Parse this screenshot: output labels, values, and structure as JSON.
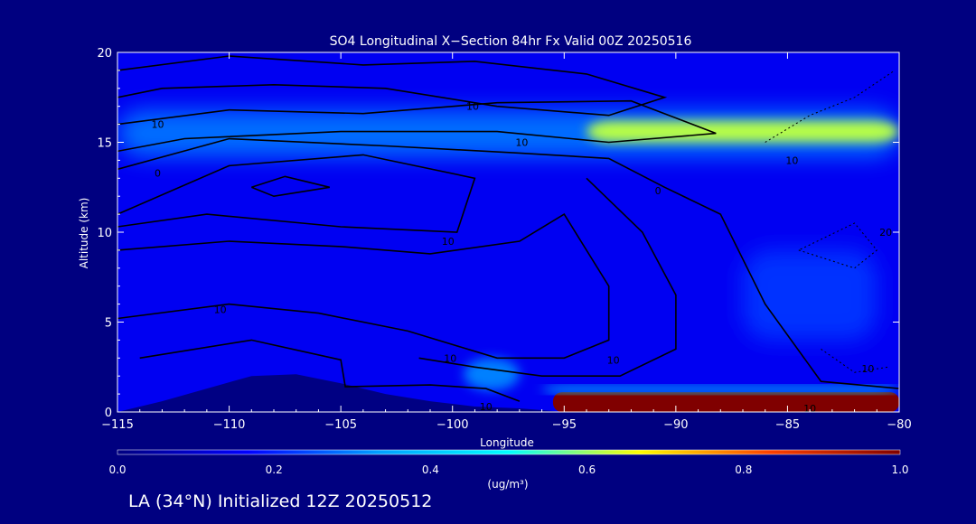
{
  "chart_data": {
    "type": "heatmap",
    "title": "SO4 Longitudinal X−Section 84hr  Fx Valid 00Z 20250516",
    "xlabel": "Longitude",
    "ylabel": "Altitude (km)",
    "xlim": [
      -115,
      -80
    ],
    "ylim": [
      0,
      20
    ],
    "xticks": [
      -115,
      -110,
      -105,
      -100,
      -95,
      -90,
      -85,
      -80
    ],
    "xtick_labels": [
      "−115",
      "−110",
      "−105",
      "−100",
      "−95",
      "−90",
      "−85",
      "−80"
    ],
    "yticks": [
      0,
      5,
      10,
      15,
      20
    ],
    "ytick_labels": [
      "0",
      "5",
      "10",
      "15",
      "20"
    ],
    "colorbar": {
      "label": "(ug/m³)",
      "range": [
        0.0,
        1.0
      ],
      "ticks": [
        0.0,
        0.2,
        0.4,
        0.6,
        0.8,
        1.0
      ],
      "tick_labels": [
        "0.0",
        "0.2",
        "0.4",
        "0.6",
        "0.8",
        "1.0"
      ],
      "colors": [
        "#000080",
        "#0000ff",
        "#00a0ff",
        "#00ffff",
        "#ffff00",
        "#ff4000",
        "#800000"
      ]
    },
    "fields": [
      {
        "name": "background",
        "lon": [
          -115,
          -80
        ],
        "alt": [
          0,
          20
        ],
        "value": 0.15
      },
      {
        "name": "upper-band",
        "lon": [
          -115,
          -80
        ],
        "alt": [
          14.2,
          16.8
        ],
        "value": 0.28
      },
      {
        "name": "tropopause-peak",
        "lon": [
          -94,
          -80
        ],
        "alt": [
          15.0,
          16.2
        ],
        "value": 0.62
      },
      {
        "name": "boundary-layer",
        "lon": [
          -95.5,
          -80
        ],
        "alt": [
          0,
          1.1
        ],
        "value": 1.0
      },
      {
        "name": "surface-edge",
        "lon": [
          -96,
          -80
        ],
        "alt": [
          1.1,
          1.4
        ],
        "value": 0.45
      },
      {
        "name": "low-plume",
        "lon": [
          -99.5,
          -97
        ],
        "alt": [
          1.2,
          3.0
        ],
        "value": 0.3
      },
      {
        "name": "east-mid-layer",
        "lon": [
          -87,
          -81
        ],
        "alt": [
          4,
          9
        ],
        "value": 0.22
      }
    ],
    "contour_labels": [
      {
        "text": "10",
        "lon": -113.2,
        "alt": 16.0
      },
      {
        "text": "10",
        "lon": -99.1,
        "alt": 17.0
      },
      {
        "text": "10",
        "lon": -96.9,
        "alt": 15.0
      },
      {
        "text": "0",
        "lon": -113.2,
        "alt": 13.3
      },
      {
        "text": "0",
        "lon": -90.8,
        "alt": 12.3
      },
      {
        "text": "10",
        "lon": -84.8,
        "alt": 14.0
      },
      {
        "text": "10",
        "lon": -100.2,
        "alt": 9.5
      },
      {
        "text": "20",
        "lon": -80.6,
        "alt": 10.0
      },
      {
        "text": "10",
        "lon": -110.4,
        "alt": 5.7
      },
      {
        "text": "10",
        "lon": -100.1,
        "alt": 3.0
      },
      {
        "text": "10",
        "lon": -92.8,
        "alt": 2.9
      },
      {
        "text": "10",
        "lon": -81.4,
        "alt": 2.4
      },
      {
        "text": "10",
        "lon": -84.0,
        "alt": 0.2
      },
      {
        "text": "10",
        "lon": -98.5,
        "alt": 0.3
      }
    ],
    "contour_lines": [
      [
        [
          -115,
          19
        ],
        [
          -110,
          19.8
        ],
        [
          -104,
          19.3
        ],
        [
          -99,
          19.5
        ],
        [
          -94,
          18.8
        ],
        [
          -90.5,
          17.5
        ],
        [
          -93,
          16.5
        ],
        [
          -98,
          17
        ],
        [
          -103,
          18
        ],
        [
          -108,
          18.2
        ],
        [
          -113,
          18
        ],
        [
          -115,
          17.5
        ]
      ],
      [
        [
          -115,
          16
        ],
        [
          -110,
          16.8
        ],
        [
          -104,
          16.6
        ],
        [
          -98,
          17.2
        ],
        [
          -92,
          17.3
        ],
        [
          -88.2,
          15.5
        ],
        [
          -93,
          15
        ],
        [
          -98,
          15.6
        ],
        [
          -105,
          15.6
        ],
        [
          -112,
          15.2
        ],
        [
          -115,
          14.5
        ]
      ],
      [
        [
          -115,
          13.5
        ],
        [
          -110,
          15.2
        ],
        [
          -103,
          14.8
        ],
        [
          -97,
          14.4
        ],
        [
          -93,
          14.1
        ],
        [
          -90.5,
          12.5
        ],
        [
          -88,
          11
        ],
        [
          -86,
          6
        ],
        [
          -83.5,
          1.7
        ],
        [
          -80,
          1.3
        ]
      ],
      [
        [
          -115,
          11
        ],
        [
          -110,
          13.7
        ],
        [
          -104,
          14.3
        ],
        [
          -99,
          13
        ],
        [
          -99.8,
          10
        ],
        [
          -105,
          10.3
        ],
        [
          -111,
          11
        ],
        [
          -115,
          10.3
        ]
      ],
      [
        [
          -115,
          9
        ],
        [
          -110,
          9.5
        ],
        [
          -105,
          9.2
        ],
        [
          -101,
          8.8
        ],
        [
          -97,
          9.5
        ],
        [
          -95,
          11
        ],
        [
          -93,
          7
        ],
        [
          -93,
          4
        ],
        [
          -95,
          3
        ],
        [
          -98,
          3
        ],
        [
          -102,
          4.5
        ],
        [
          -106,
          5.5
        ],
        [
          -110,
          6
        ],
        [
          -115,
          5.2
        ]
      ],
      [
        [
          -114,
          3
        ],
        [
          -109,
          4
        ],
        [
          -105,
          2.9
        ],
        [
          -104.8,
          1.4
        ],
        [
          -101,
          1.5
        ],
        [
          -98.5,
          1.3
        ],
        [
          -97,
          0.6
        ]
      ],
      [
        [
          -94,
          13
        ],
        [
          -91.5,
          10
        ],
        [
          -90,
          6.5
        ],
        [
          -90,
          3.5
        ],
        [
          -92.5,
          2
        ],
        [
          -96,
          2
        ],
        [
          -99,
          2.5
        ],
        [
          -101.5,
          3
        ]
      ],
      [
        [
          -109,
          12.5
        ],
        [
          -107.5,
          13.1
        ],
        [
          -105.5,
          12.5
        ],
        [
          -108,
          12
        ],
        [
          -109,
          12.5
        ]
      ]
    ],
    "dotted_contours": [
      [
        [
          -86,
          15
        ],
        [
          -84,
          16.5
        ],
        [
          -82,
          17.5
        ],
        [
          -80.2,
          19
        ]
      ],
      [
        [
          -84.5,
          9
        ],
        [
          -82,
          8
        ],
        [
          -81,
          9
        ],
        [
          -82,
          10.5
        ],
        [
          -84.5,
          9
        ]
      ],
      [
        [
          -83.5,
          3.5
        ],
        [
          -82,
          2.2
        ],
        [
          -80.5,
          2.5
        ]
      ]
    ],
    "terrain_profile": [
      [
        -115,
        0
      ],
      [
        -113,
        0.6
      ],
      [
        -111,
        1.3
      ],
      [
        -109,
        2.0
      ],
      [
        -107,
        2.1
      ],
      [
        -105,
        1.6
      ],
      [
        -103,
        1.0
      ],
      [
        -101,
        0.6
      ],
      [
        -99,
        0.3
      ],
      [
        -97,
        0.2
      ],
      [
        -95,
        0
      ]
    ]
  },
  "footer": {
    "caption": "LA (34°N) Initialized 12Z 20250512"
  }
}
